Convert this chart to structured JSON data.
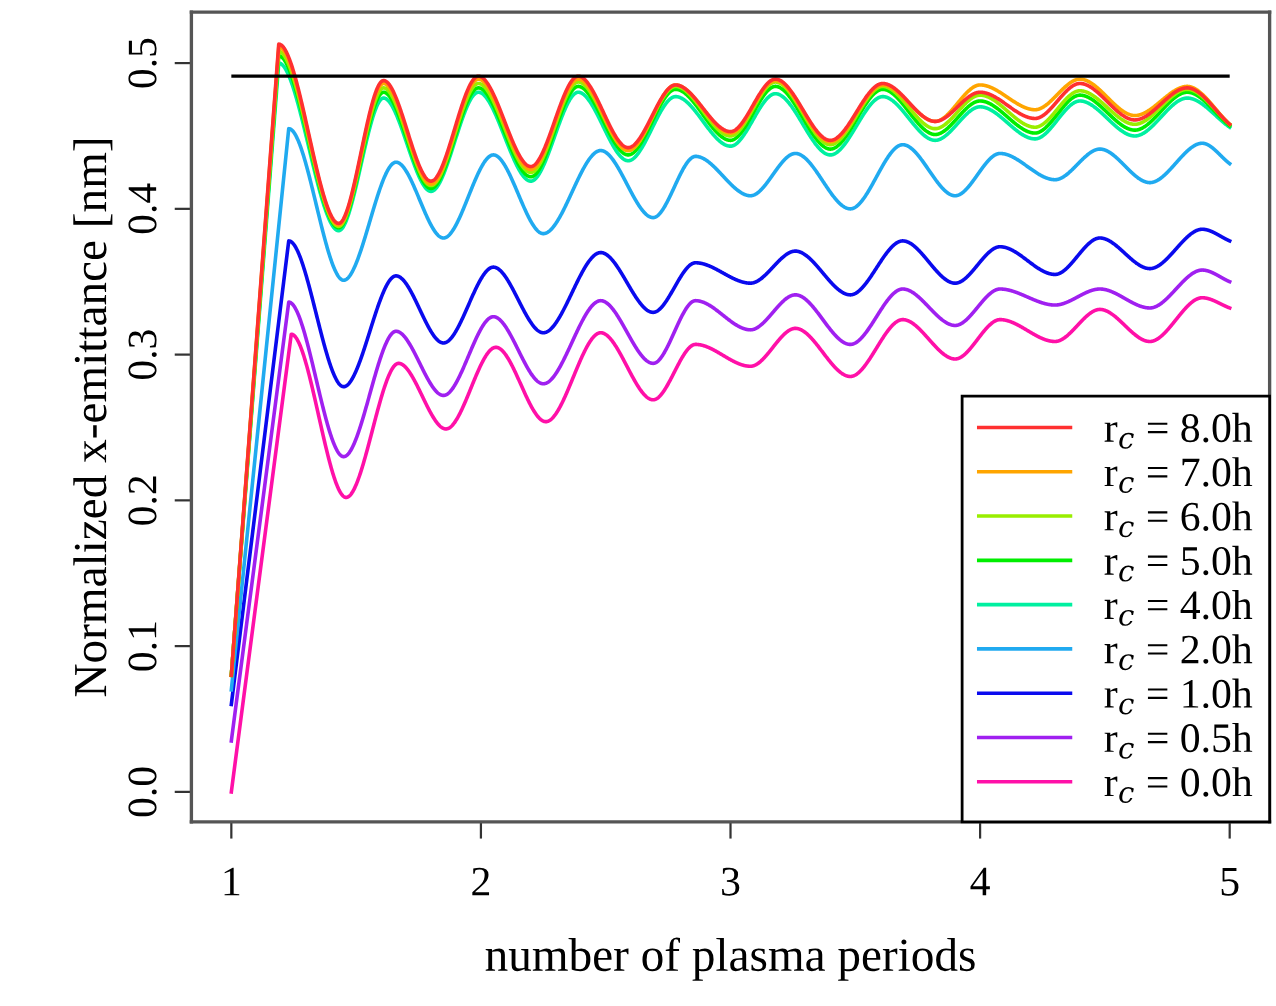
{
  "chart_data": {
    "type": "line",
    "xlabel": "number of plasma periods",
    "ylabel": "Normalized x-emittance [nm]",
    "xlim": [
      0.84,
      5.16
    ],
    "ylim": [
      -0.0206,
      0.535
    ],
    "xticks": [
      1,
      2,
      3,
      4,
      5
    ],
    "yticks": [
      {
        "value": 0,
        "label": "0.0"
      },
      {
        "value": 0.1,
        "label": "0.1"
      },
      {
        "value": 0.2,
        "label": "0.2"
      },
      {
        "value": 0.3,
        "label": "0.3"
      },
      {
        "value": 0.4,
        "label": "0.4"
      },
      {
        "value": 0.5,
        "label": "0.5"
      }
    ],
    "grid": false,
    "legend": "bottom right",
    "marker": "none",
    "line_style": "solid",
    "ref_lines": [
      {
        "axis": "y",
        "value": 0.491,
        "color": "#000000"
      }
    ],
    "series": [
      {
        "name": "r$_{c}$ = 8.0h",
        "color": "#ff3030",
        "x": [
          1.0,
          1.19,
          1.43,
          1.61,
          1.8,
          1.99,
          2.2,
          2.39,
          2.59,
          2.78,
          3.0,
          3.18,
          3.4,
          3.61,
          3.82,
          4.0,
          4.22,
          4.4,
          4.62,
          4.83,
          5.0
        ],
        "values": [
          0.08,
          0.513,
          0.39,
          0.488,
          0.419,
          0.491,
          0.429,
          0.491,
          0.442,
          0.485,
          0.453,
          0.489,
          0.447,
          0.486,
          0.46,
          0.48,
          0.462,
          0.486,
          0.461,
          0.483,
          0.458
        ]
      },
      {
        "name": "r$_{c}$ = 7.0h",
        "color": "#ffa500",
        "x": [
          1.0,
          1.19,
          1.43,
          1.61,
          1.8,
          1.99,
          2.2,
          2.39,
          2.59,
          2.78,
          3.0,
          3.18,
          3.4,
          3.61,
          3.82,
          4.0,
          4.22,
          4.4,
          4.62,
          4.83,
          5.0
        ],
        "values": [
          0.08,
          0.511,
          0.389,
          0.486,
          0.417,
          0.489,
          0.427,
          0.489,
          0.44,
          0.485,
          0.452,
          0.488,
          0.446,
          0.485,
          0.46,
          0.485,
          0.468,
          0.489,
          0.464,
          0.484,
          0.458
        ]
      },
      {
        "name": "r$_{c}$ = 6.0h",
        "color": "#99ee00",
        "x": [
          1.0,
          1.19,
          1.43,
          1.61,
          1.8,
          1.99,
          2.2,
          2.39,
          2.59,
          2.78,
          3.0,
          3.18,
          3.4,
          3.61,
          3.82,
          4.0,
          4.22,
          4.4,
          4.62,
          4.83,
          5.0
        ],
        "values": [
          0.08,
          0.508,
          0.388,
          0.483,
          0.416,
          0.486,
          0.425,
          0.487,
          0.44,
          0.484,
          0.45,
          0.487,
          0.444,
          0.484,
          0.455,
          0.478,
          0.456,
          0.481,
          0.458,
          0.482,
          0.458
        ]
      },
      {
        "name": "r$_{c}$ = 5.0h",
        "color": "#00ee00",
        "x": [
          1.0,
          1.19,
          1.43,
          1.61,
          1.8,
          1.99,
          2.2,
          2.39,
          2.59,
          2.78,
          3.0,
          3.18,
          3.4,
          3.61,
          3.82,
          4.0,
          4.22,
          4.4,
          4.62,
          4.83,
          5.0
        ],
        "values": [
          0.08,
          0.505,
          0.387,
          0.48,
          0.414,
          0.483,
          0.422,
          0.484,
          0.437,
          0.482,
          0.447,
          0.484,
          0.441,
          0.482,
          0.451,
          0.474,
          0.452,
          0.478,
          0.454,
          0.48,
          0.457
        ]
      },
      {
        "name": "r$_{c}$ = 4.0h",
        "color": "#00f0a0",
        "x": [
          1.0,
          1.19,
          1.43,
          1.61,
          1.8,
          1.99,
          2.2,
          2.39,
          2.59,
          2.78,
          3.0,
          3.18,
          3.4,
          3.61,
          3.82,
          4.0,
          4.22,
          4.4,
          4.62,
          4.83,
          5.0
        ],
        "values": [
          0.08,
          0.5,
          0.385,
          0.476,
          0.412,
          0.48,
          0.419,
          0.48,
          0.433,
          0.477,
          0.443,
          0.479,
          0.437,
          0.477,
          0.447,
          0.47,
          0.448,
          0.474,
          0.45,
          0.476,
          0.456
        ]
      },
      {
        "name": "r$_{c}$ = 2.0h",
        "color": "#20aaf0",
        "x": [
          1.0,
          1.23,
          1.45,
          1.66,
          1.85,
          2.05,
          2.25,
          2.48,
          2.69,
          2.86,
          3.08,
          3.26,
          3.48,
          3.69,
          3.9,
          4.08,
          4.3,
          4.48,
          4.68,
          4.89,
          5.0
        ],
        "values": [
          0.07,
          0.455,
          0.351,
          0.432,
          0.38,
          0.437,
          0.383,
          0.44,
          0.394,
          0.436,
          0.409,
          0.438,
          0.4,
          0.444,
          0.409,
          0.438,
          0.42,
          0.441,
          0.418,
          0.445,
          0.431
        ]
      },
      {
        "name": "r$_{c}$ = 1.0h",
        "color": "#0a0aee",
        "x": [
          1.0,
          1.23,
          1.45,
          1.66,
          1.85,
          2.05,
          2.25,
          2.48,
          2.69,
          2.86,
          3.08,
          3.26,
          3.48,
          3.69,
          3.9,
          4.08,
          4.3,
          4.48,
          4.68,
          4.89,
          5.0
        ],
        "values": [
          0.06,
          0.378,
          0.278,
          0.354,
          0.308,
          0.36,
          0.315,
          0.37,
          0.329,
          0.363,
          0.349,
          0.371,
          0.341,
          0.378,
          0.349,
          0.374,
          0.355,
          0.38,
          0.359,
          0.386,
          0.378
        ]
      },
      {
        "name": "r$_{c}$ = 0.5h",
        "color": "#a020f0",
        "x": [
          1.0,
          1.23,
          1.45,
          1.66,
          1.85,
          2.05,
          2.25,
          2.48,
          2.69,
          2.86,
          3.08,
          3.26,
          3.48,
          3.69,
          3.9,
          4.08,
          4.3,
          4.48,
          4.68,
          4.89,
          5.0
        ],
        "values": [
          0.035,
          0.336,
          0.23,
          0.316,
          0.272,
          0.326,
          0.28,
          0.337,
          0.294,
          0.337,
          0.317,
          0.341,
          0.307,
          0.345,
          0.32,
          0.345,
          0.334,
          0.345,
          0.332,
          0.358,
          0.35
        ]
      },
      {
        "name": "r$_{c}$ = 0.0h",
        "color": "#ff10a8",
        "x": [
          1.0,
          1.24,
          1.46,
          1.67,
          1.86,
          2.06,
          2.26,
          2.48,
          2.69,
          2.86,
          3.08,
          3.26,
          3.48,
          3.69,
          3.9,
          4.08,
          4.3,
          4.48,
          4.68,
          4.89,
          5.0
        ],
        "values": [
          0.0,
          0.314,
          0.202,
          0.294,
          0.249,
          0.305,
          0.254,
          0.315,
          0.269,
          0.307,
          0.292,
          0.318,
          0.285,
          0.324,
          0.297,
          0.324,
          0.309,
          0.331,
          0.309,
          0.339,
          0.332
        ]
      }
    ]
  }
}
